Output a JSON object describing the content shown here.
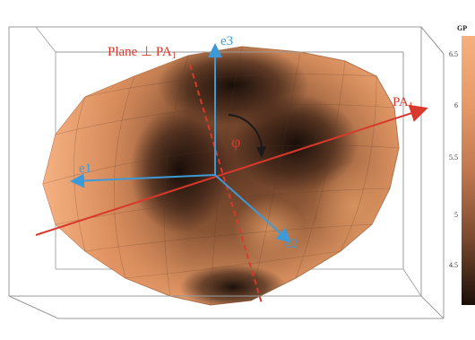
{
  "labels": {
    "plane": "Plane ⊥ PA",
    "plane_sub": "1",
    "pa": "PA",
    "pa_sub": "1",
    "phi": "φ",
    "e1": "e1",
    "e2": "e2",
    "e3": "e3"
  },
  "colorbar": {
    "title": "GP",
    "ticks": [
      "6.5",
      "6",
      "5.5",
      "5",
      "4.5"
    ],
    "colors": [
      "#f5b07e",
      "#e69a68",
      "#c17850",
      "#7a4a2f",
      "#2a170f"
    ]
  },
  "colors": {
    "axis_red": "#d8392b",
    "axis_blue": "#3d9ad6",
    "surface_light": "#f2a877",
    "surface_dark": "#1e120c",
    "box_line": "#9a9a9a"
  }
}
